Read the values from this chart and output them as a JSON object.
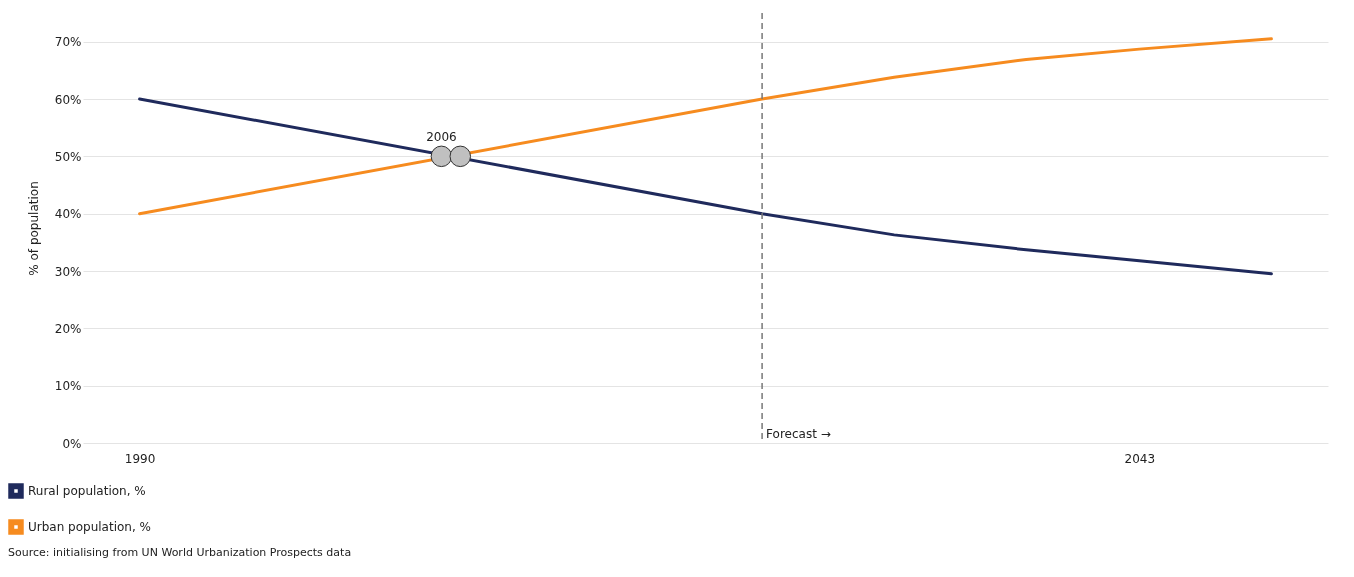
{
  "chart_data": {
    "type": "line",
    "ylabel": "% of population",
    "x": [
      1990,
      2023,
      2030,
      2037,
      2043,
      2050
    ],
    "series": [
      {
        "name": "Rural population, %",
        "color": "#1f2a5c",
        "values": [
          60,
          40,
          36.3,
          33.7,
          31.8,
          29.5
        ]
      },
      {
        "name": "Urban population, %",
        "color": "#f68b1f",
        "values": [
          40,
          60,
          63.8,
          66.9,
          68.7,
          70.5
        ]
      },
      {
        "type": "scatter",
        "color": "#c0c0c0",
        "x": [
          2006,
          2007
        ],
        "values": [
          50,
          50
        ]
      }
    ],
    "xlim": [
      1987,
      2053
    ],
    "xticks": [
      1990,
      2043
    ],
    "ylim": [
      0,
      75
    ],
    "yticks": [
      {
        "value": 0,
        "label": "0%"
      },
      {
        "value": 10,
        "label": "10%"
      },
      {
        "value": 20,
        "label": "20%"
      },
      {
        "value": 30,
        "label": "30%"
      },
      {
        "value": 40,
        "label": "40%"
      },
      {
        "value": 50,
        "label": "50%"
      },
      {
        "value": 60,
        "label": "60%"
      },
      {
        "value": 70,
        "label": "70%"
      }
    ],
    "grid": "y",
    "legend": "bottom left",
    "ref_lines": [
      {
        "axis": "x",
        "value": 2023,
        "label": "Forecast →",
        "color": "#777777",
        "line_style": "dashed"
      }
    ],
    "annotations": [
      {
        "text": "2006",
        "x": 2006,
        "y": 50
      },
      "Source: initialising from UN World Urbanization Prospects data"
    ]
  }
}
